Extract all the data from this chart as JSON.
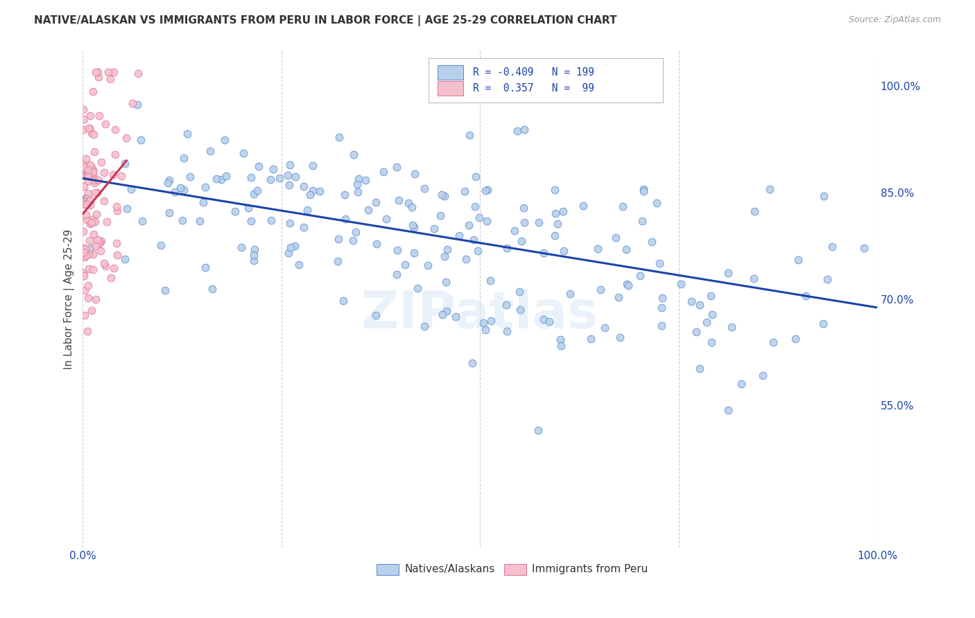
{
  "title": "NATIVE/ALASKAN VS IMMIGRANTS FROM PERU IN LABOR FORCE | AGE 25-29 CORRELATION CHART",
  "source": "Source: ZipAtlas.com",
  "ylabel": "In Labor Force | Age 25-29",
  "xlim": [
    0.0,
    1.0
  ],
  "ylim": [
    0.35,
    1.05
  ],
  "right_yticks": [
    1.0,
    0.85,
    0.7,
    0.55
  ],
  "right_yticklabels": [
    "100.0%",
    "85.0%",
    "70.0%",
    "55.0%"
  ],
  "blue_R": -0.409,
  "blue_N": 199,
  "pink_R": 0.357,
  "pink_N": 99,
  "blue_color": "#b8d0ec",
  "blue_edge_color": "#5588cc",
  "blue_line_color": "#1a44aa",
  "pink_color": "#f5c0ce",
  "pink_edge_color": "#e07090",
  "pink_line_color": "#cc3355",
  "legend_label_blue": "Natives/Alaskans",
  "legend_label_pink": "Immigrants from Peru",
  "watermark": "ZIPatlas",
  "background_color": "#ffffff",
  "grid_color": "#cccccc",
  "blue_trend_x0": 0.0,
  "blue_trend_y0": 0.87,
  "blue_trend_x1": 1.0,
  "blue_trend_y1": 0.688,
  "pink_trend_x0": 0.0,
  "pink_trend_y0": 0.82,
  "pink_trend_x1": 0.055,
  "pink_trend_y1": 0.895
}
